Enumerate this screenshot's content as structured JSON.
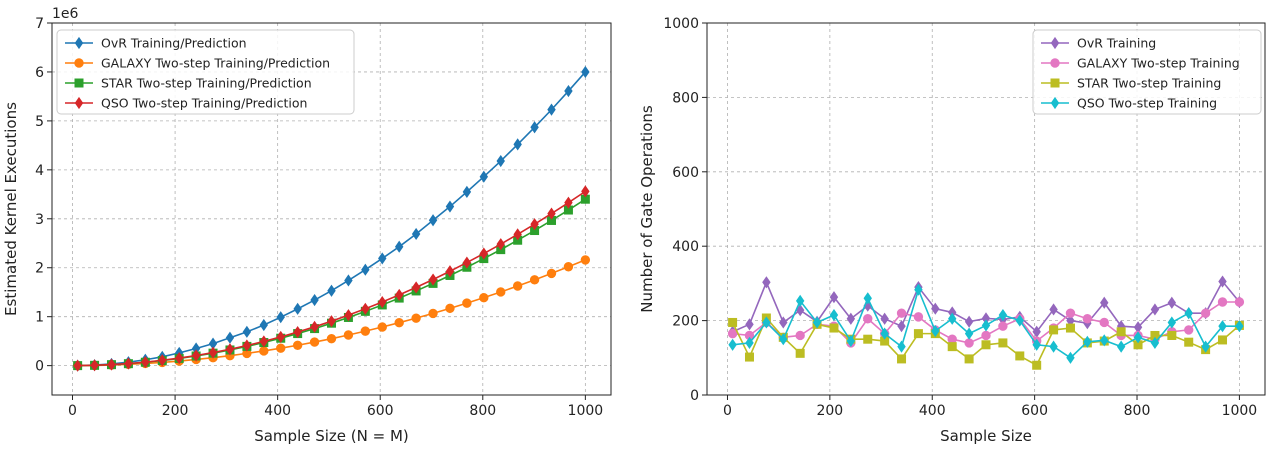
{
  "chart_data": [
    {
      "type": "line",
      "xlabel": "Sample Size (N = M)",
      "ylabel": "Estimated Kernel Executions",
      "offset_text": "1e6",
      "xlim": [
        -40,
        1050
      ],
      "ylim": [
        -0.6,
        7
      ],
      "x_ticks": [
        0,
        200,
        400,
        600,
        800,
        1000
      ],
      "x_tick_labels": [
        "0",
        "200",
        "400",
        "600",
        "800",
        "1000"
      ],
      "y_ticks": [
        0,
        1,
        2,
        3,
        4,
        5,
        6,
        7
      ],
      "y_tick_labels": [
        "0",
        "1",
        "2",
        "3",
        "4",
        "5",
        "6",
        "7"
      ],
      "grid": true,
      "legend_position": "upper-left",
      "x": [
        10,
        43,
        76,
        109,
        142,
        175,
        208,
        241,
        274,
        307,
        340,
        373,
        406,
        439,
        472,
        505,
        538,
        571,
        604,
        637,
        670,
        703,
        736,
        769,
        802,
        835,
        868,
        901,
        934,
        967,
        1000
      ],
      "series": [
        {
          "name": "OvR Training/Prediction",
          "color": "#1f77b4",
          "marker": "diamond",
          "values": [
            0.0006,
            0.011,
            0.035,
            0.071,
            0.12,
            0.18,
            0.26,
            0.35,
            0.45,
            0.57,
            0.69,
            0.83,
            0.99,
            1.16,
            1.34,
            1.53,
            1.74,
            1.96,
            2.19,
            2.43,
            2.69,
            2.97,
            3.25,
            3.55,
            3.86,
            4.18,
            4.52,
            4.87,
            5.23,
            5.61,
            6.0
          ]
        },
        {
          "name": "GALAXY Two-step Training/Prediction",
          "color": "#ff7f0e",
          "marker": "circle",
          "values": [
            0.0002,
            0.004,
            0.012,
            0.026,
            0.044,
            0.066,
            0.093,
            0.126,
            0.162,
            0.204,
            0.25,
            0.3,
            0.356,
            0.416,
            0.482,
            0.551,
            0.626,
            0.705,
            0.789,
            0.877,
            0.97,
            1.067,
            1.17,
            1.277,
            1.389,
            1.505,
            1.627,
            1.753,
            1.884,
            2.02,
            2.16
          ]
        },
        {
          "name": "STAR Two-step Training/Prediction",
          "color": "#2ca02c",
          "marker": "square",
          "values": [
            0.0003,
            0.006,
            0.02,
            0.04,
            0.069,
            0.104,
            0.147,
            0.197,
            0.255,
            0.32,
            0.393,
            0.472,
            0.56,
            0.655,
            0.757,
            0.867,
            0.984,
            1.109,
            1.24,
            1.38,
            1.526,
            1.68,
            1.842,
            2.01,
            2.187,
            2.37,
            2.562,
            2.76,
            2.966,
            3.179,
            3.4
          ]
        },
        {
          "name": "QSO Two-step Training/Prediction",
          "color": "#d62728",
          "marker": "diamond",
          "values": [
            0.0004,
            0.007,
            0.021,
            0.042,
            0.072,
            0.11,
            0.154,
            0.207,
            0.267,
            0.335,
            0.411,
            0.495,
            0.587,
            0.686,
            0.793,
            0.908,
            1.031,
            1.161,
            1.299,
            1.445,
            1.598,
            1.759,
            1.928,
            2.105,
            2.29,
            2.482,
            2.682,
            2.89,
            3.106,
            3.329,
            3.56
          ]
        }
      ]
    },
    {
      "type": "line",
      "xlabel": "Sample Size",
      "ylabel": "Number of Gate Operations",
      "xlim": [
        -40,
        1050
      ],
      "ylim": [
        0,
        1000
      ],
      "x_ticks": [
        0,
        200,
        400,
        600,
        800,
        1000
      ],
      "x_tick_labels": [
        "0",
        "200",
        "400",
        "600",
        "800",
        "1000"
      ],
      "y_ticks": [
        0,
        200,
        400,
        600,
        800,
        1000
      ],
      "y_tick_labels": [
        "0",
        "200",
        "400",
        "600",
        "800",
        "1000"
      ],
      "grid": true,
      "legend_position": "upper-right",
      "x": [
        10,
        43,
        76,
        109,
        142,
        175,
        208,
        241,
        274,
        307,
        340,
        373,
        406,
        439,
        472,
        505,
        538,
        571,
        604,
        637,
        670,
        703,
        736,
        769,
        802,
        835,
        868,
        901,
        934,
        967,
        1000
      ],
      "series": [
        {
          "name": "OvR Training",
          "color": "#9467bd",
          "marker": "diamond",
          "values": [
            170,
            190,
            303,
            195,
            228,
            197,
            263,
            205,
            240,
            205,
            185,
            290,
            232,
            222,
            197,
            206,
            203,
            210,
            170,
            230,
            200,
            193,
            248,
            185,
            182,
            230,
            248,
            220,
            220,
            305,
            250
          ]
        },
        {
          "name": "GALAXY Two-step Training",
          "color": "#e377c2",
          "marker": "circle",
          "values": [
            165,
            160,
            195,
            155,
            160,
            190,
            185,
            140,
            205,
            165,
            220,
            210,
            175,
            150,
            140,
            160,
            185,
            205,
            145,
            180,
            220,
            205,
            195,
            160,
            160,
            150,
            170,
            175,
            220,
            250,
            250
          ]
        },
        {
          "name": "STAR Two-step Training",
          "color": "#bcbd22",
          "marker": "square",
          "values": [
            195,
            102,
            207,
            155,
            112,
            190,
            180,
            150,
            150,
            145,
            97,
            165,
            165,
            130,
            97,
            135,
            140,
            105,
            80,
            175,
            180,
            140,
            145,
            170,
            135,
            160,
            160,
            142,
            122,
            148,
            187
          ]
        },
        {
          "name": "QSO Two-step Training",
          "color": "#17becf",
          "marker": "diamond",
          "values": [
            135,
            140,
            195,
            150,
            253,
            195,
            215,
            145,
            260,
            165,
            130,
            283,
            172,
            205,
            165,
            187,
            215,
            200,
            135,
            130,
            100,
            143,
            147,
            130,
            155,
            140,
            195,
            220,
            130,
            185,
            185
          ]
        }
      ]
    }
  ]
}
